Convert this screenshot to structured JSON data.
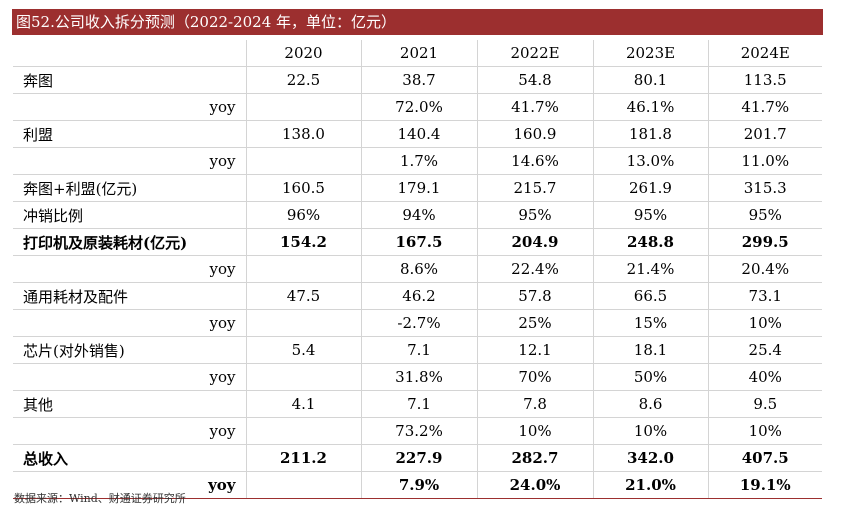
{
  "title": "图52.公司收入拆分预测（2022-2024 年，单位：亿元）",
  "columns": [
    "2020",
    "2021",
    "2022E",
    "2023E",
    "2024E"
  ],
  "rows": [
    {
      "label": "奔图",
      "values": [
        "22.5",
        "38.7",
        "54.8",
        "80.1",
        "113.5"
      ],
      "sub": false,
      "bold": false
    },
    {
      "label": "yoy",
      "values": [
        "",
        "72.0%",
        "41.7%",
        "46.1%",
        "41.7%"
      ],
      "sub": true,
      "bold": false
    },
    {
      "label": "利盟",
      "values": [
        "138.0",
        "140.4",
        "160.9",
        "181.8",
        "201.7"
      ],
      "sub": false,
      "bold": false
    },
    {
      "label": "yoy",
      "values": [
        "",
        "1.7%",
        "14.6%",
        "13.0%",
        "11.0%"
      ],
      "sub": true,
      "bold": false
    },
    {
      "label": "奔图+利盟(亿元)",
      "values": [
        "160.5",
        "179.1",
        "215.7",
        "261.9",
        "315.3"
      ],
      "sub": false,
      "bold": false
    },
    {
      "label": "冲销比例",
      "values": [
        "96%",
        "94%",
        "95%",
        "95%",
        "95%"
      ],
      "sub": false,
      "bold": false
    },
    {
      "label": "打印机及原装耗材(亿元)",
      "values": [
        "154.2",
        "167.5",
        "204.9",
        "248.8",
        "299.5"
      ],
      "sub": false,
      "bold": true
    },
    {
      "label": "yoy",
      "values": [
        "",
        "8.6%",
        "22.4%",
        "21.4%",
        "20.4%"
      ],
      "sub": true,
      "bold": false
    },
    {
      "label": "通用耗材及配件",
      "values": [
        "47.5",
        "46.2",
        "57.8",
        "66.5",
        "73.1"
      ],
      "sub": false,
      "bold": false
    },
    {
      "label": "yoy",
      "values": [
        "",
        "-2.7%",
        "25%",
        "15%",
        "10%"
      ],
      "sub": true,
      "bold": false
    },
    {
      "label": "芯片(对外销售)",
      "values": [
        "5.4",
        "7.1",
        "12.1",
        "18.1",
        "25.4"
      ],
      "sub": false,
      "bold": false
    },
    {
      "label": "yoy",
      "values": [
        "",
        "31.8%",
        "70%",
        "50%",
        "40%"
      ],
      "sub": true,
      "bold": false
    },
    {
      "label": "其他",
      "values": [
        "4.1",
        "7.1",
        "7.8",
        "8.6",
        "9.5"
      ],
      "sub": false,
      "bold": false
    },
    {
      "label": "yoy",
      "values": [
        "",
        "73.2%",
        "10%",
        "10%",
        "10%"
      ],
      "sub": true,
      "bold": false
    },
    {
      "label": "总收入",
      "values": [
        "211.2",
        "227.9",
        "282.7",
        "342.0",
        "407.5"
      ],
      "sub": false,
      "bold": true
    },
    {
      "label": "yoy",
      "values": [
        "",
        "7.9%",
        "24.0%",
        "21.0%",
        "19.1%"
      ],
      "sub": true,
      "bold": true
    }
  ],
  "source": "数据来源：Wind、财通证券研究所"
}
